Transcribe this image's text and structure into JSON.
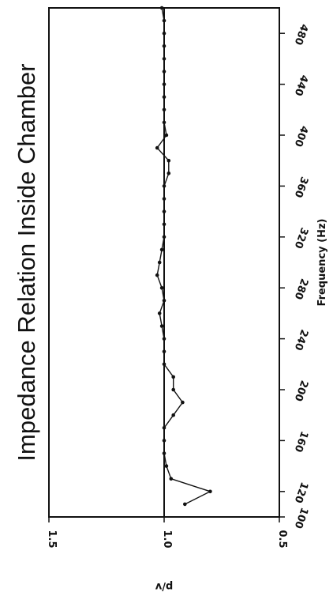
{
  "chart_data": {
    "type": "line",
    "title": "Impedance Relation Inside Chamber",
    "xlabel": "Frequency (Hz)",
    "ylabel": "p/v",
    "xlim": [
      100,
      500
    ],
    "ylim": [
      0.5,
      1.5
    ],
    "x_ticks": [
      "100",
      "120",
      "160",
      "200",
      "240",
      "280",
      "320",
      "360",
      "400",
      "440",
      "480"
    ],
    "x_tick_values": [
      100,
      120,
      160,
      200,
      240,
      280,
      320,
      360,
      400,
      440,
      480
    ],
    "y_ticks": [
      "0.5",
      "1.0",
      "1.5"
    ],
    "y_tick_values": [
      0.5,
      1.0,
      1.5
    ],
    "reference_line": 1.0,
    "series": [
      {
        "x": [
          110,
          120,
          130,
          140,
          150,
          160,
          170,
          180,
          190,
          200,
          210,
          220,
          230,
          240,
          250,
          260,
          270,
          280,
          290,
          300,
          310,
          320,
          330,
          340,
          350,
          360,
          370,
          380,
          390,
          400,
          410,
          420,
          430,
          440,
          450,
          460,
          470,
          480,
          490,
          500
        ],
        "values": [
          0.91,
          0.8,
          0.97,
          0.99,
          1.0,
          1.0,
          1.0,
          0.96,
          0.92,
          0.96,
          0.96,
          1.0,
          1.0,
          1.0,
          1.01,
          1.02,
          1.0,
          1.01,
          1.03,
          1.02,
          1.01,
          1.0,
          1.0,
          1.0,
          1.0,
          1.0,
          0.98,
          0.98,
          1.03,
          0.99,
          1.0,
          1.0,
          1.0,
          1.0,
          1.0,
          1.0,
          1.0,
          1.0,
          1.0,
          1.01
        ]
      }
    ]
  }
}
